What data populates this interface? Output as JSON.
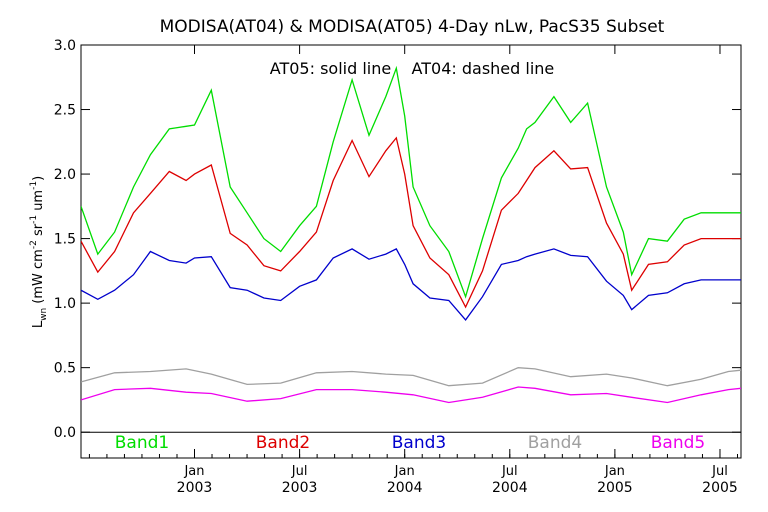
{
  "chart_data": {
    "type": "line",
    "title": "MODISA(AT04) & MODISA(AT05) 4-Day nLw, PacS35 Subset",
    "annotation": "AT05: solid line    AT04: dashed line",
    "ylabel_main": "L",
    "ylabel_sub": "wn",
    "ylabel_units": "(mW cm",
    "ylabel_units_full": "(mW cm⁻² sr⁻¹ um⁻¹)",
    "ylim": [
      -0.2,
      3.0
    ],
    "yticks": [
      "3.0",
      "2.5",
      "2.0",
      "1.5",
      "1.0",
      "0.5",
      "0.0"
    ],
    "xlim": [
      2002.46,
      2005.6
    ],
    "xticks": [
      {
        "month": "Jan",
        "year": "2003",
        "x": 2003.0
      },
      {
        "month": "Jul",
        "year": "2003",
        "x": 2003.5
      },
      {
        "month": "Jan",
        "year": "2004",
        "x": 2004.0
      },
      {
        "month": "Jul",
        "year": "2004",
        "x": 2004.5
      },
      {
        "month": "Jan",
        "year": "2005",
        "x": 2005.0
      },
      {
        "month": "Jul",
        "year": "2005",
        "x": 2005.5
      }
    ],
    "zero_line": 0.0,
    "series": [
      {
        "name": "Band1",
        "color": "#00dd00",
        "x": [
          2002.46,
          2002.54,
          2002.62,
          2002.71,
          2002.79,
          2002.88,
          2002.96,
          2003.0,
          2003.08,
          2003.17,
          2003.25,
          2003.33,
          2003.41,
          2003.5,
          2003.58,
          2003.66,
          2003.75,
          2003.83,
          2003.91,
          2003.96,
          2004.0,
          2004.04,
          2004.12,
          2004.21,
          2004.29,
          2004.37,
          2004.46,
          2004.54,
          2004.58,
          2004.62,
          2004.71,
          2004.79,
          2004.87,
          2004.96,
          2005.04,
          2005.08,
          2005.16,
          2005.25,
          2005.33,
          2005.41,
          2005.5,
          2005.54,
          2005.58,
          2005.6
        ],
        "y": [
          1.75,
          1.38,
          1.55,
          1.9,
          2.15,
          2.35,
          2.37,
          2.38,
          2.65,
          1.9,
          1.7,
          1.5,
          1.4,
          1.6,
          1.75,
          2.25,
          2.73,
          2.3,
          2.6,
          2.82,
          2.45,
          1.9,
          1.6,
          1.4,
          1.05,
          1.5,
          1.97,
          2.2,
          2.35,
          2.4,
          2.6,
          2.4,
          2.55,
          1.9,
          1.55,
          1.22,
          1.5,
          1.48,
          1.65,
          1.7,
          1.7,
          1.7,
          1.7,
          1.7
        ]
      },
      {
        "name": "Band2",
        "color": "#dd0000",
        "x": [
          2002.46,
          2002.54,
          2002.62,
          2002.71,
          2002.79,
          2002.88,
          2002.96,
          2003.0,
          2003.08,
          2003.17,
          2003.25,
          2003.33,
          2003.41,
          2003.5,
          2003.58,
          2003.66,
          2003.75,
          2003.83,
          2003.91,
          2003.96,
          2004.0,
          2004.04,
          2004.12,
          2004.21,
          2004.29,
          2004.37,
          2004.46,
          2004.54,
          2004.58,
          2004.62,
          2004.71,
          2004.79,
          2004.87,
          2004.96,
          2005.04,
          2005.08,
          2005.16,
          2005.25,
          2005.33,
          2005.41,
          2005.5,
          2005.54,
          2005.58,
          2005.6
        ],
        "y": [
          1.48,
          1.24,
          1.4,
          1.7,
          1.85,
          2.02,
          1.95,
          2.0,
          2.07,
          1.54,
          1.45,
          1.29,
          1.25,
          1.4,
          1.55,
          1.95,
          2.26,
          1.98,
          2.18,
          2.28,
          2.0,
          1.6,
          1.35,
          1.22,
          0.97,
          1.25,
          1.72,
          1.85,
          1.95,
          2.05,
          2.18,
          2.04,
          2.05,
          1.62,
          1.38,
          1.1,
          1.3,
          1.32,
          1.45,
          1.5,
          1.5,
          1.5,
          1.5,
          1.5
        ]
      },
      {
        "name": "Band3",
        "color": "#0000cc",
        "x": [
          2002.46,
          2002.54,
          2002.62,
          2002.71,
          2002.79,
          2002.88,
          2002.96,
          2003.0,
          2003.08,
          2003.17,
          2003.25,
          2003.33,
          2003.41,
          2003.5,
          2003.58,
          2003.66,
          2003.75,
          2003.83,
          2003.91,
          2003.96,
          2004.0,
          2004.04,
          2004.12,
          2004.21,
          2004.29,
          2004.37,
          2004.46,
          2004.54,
          2004.58,
          2004.62,
          2004.71,
          2004.79,
          2004.87,
          2004.96,
          2005.04,
          2005.08,
          2005.16,
          2005.25,
          2005.33,
          2005.41,
          2005.5,
          2005.54,
          2005.58,
          2005.6
        ],
        "y": [
          1.1,
          1.03,
          1.1,
          1.22,
          1.4,
          1.33,
          1.31,
          1.35,
          1.36,
          1.12,
          1.1,
          1.04,
          1.02,
          1.13,
          1.18,
          1.35,
          1.42,
          1.34,
          1.38,
          1.42,
          1.3,
          1.15,
          1.04,
          1.02,
          0.87,
          1.05,
          1.3,
          1.33,
          1.36,
          1.38,
          1.42,
          1.37,
          1.36,
          1.17,
          1.06,
          0.95,
          1.06,
          1.08,
          1.15,
          1.18,
          1.18,
          1.18,
          1.18,
          1.18
        ]
      },
      {
        "name": "Band4",
        "color": "#a0a0a0",
        "x": [
          2002.46,
          2002.62,
          2002.79,
          2002.96,
          2003.08,
          2003.25,
          2003.41,
          2003.58,
          2003.75,
          2003.91,
          2004.04,
          2004.21,
          2004.37,
          2004.54,
          2004.62,
          2004.79,
          2004.96,
          2005.08,
          2005.25,
          2005.41,
          2005.54,
          2005.6
        ],
        "y": [
          0.39,
          0.46,
          0.47,
          0.49,
          0.45,
          0.37,
          0.38,
          0.46,
          0.47,
          0.45,
          0.44,
          0.36,
          0.38,
          0.5,
          0.49,
          0.43,
          0.45,
          0.42,
          0.36,
          0.41,
          0.47,
          0.48
        ]
      },
      {
        "name": "Band5",
        "color": "#ee00ee",
        "x": [
          2002.46,
          2002.62,
          2002.79,
          2002.96,
          2003.08,
          2003.25,
          2003.41,
          2003.58,
          2003.75,
          2003.91,
          2004.04,
          2004.21,
          2004.37,
          2004.54,
          2004.62,
          2004.79,
          2004.96,
          2005.08,
          2005.25,
          2005.41,
          2005.54,
          2005.6
        ],
        "y": [
          0.25,
          0.33,
          0.34,
          0.31,
          0.3,
          0.24,
          0.26,
          0.33,
          0.33,
          0.31,
          0.29,
          0.23,
          0.27,
          0.35,
          0.34,
          0.29,
          0.3,
          0.27,
          0.23,
          0.29,
          0.33,
          0.34
        ]
      }
    ]
  }
}
